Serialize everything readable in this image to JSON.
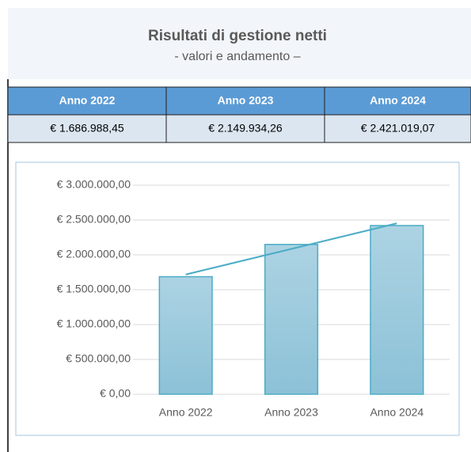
{
  "header": {
    "title": "Risultati di gestione netti",
    "subtitle": "- valori e andamento –"
  },
  "chart_data": {
    "type": "bar",
    "categories": [
      "Anno 2022",
      "Anno 2023",
      "Anno 2024"
    ],
    "values": [
      1686988.45,
      2149934.26,
      2421019.07
    ],
    "value_labels": [
      "€ 1.686.988,45",
      "€ 2.149.934,26",
      "€ 2.421.019,07"
    ],
    "color": "#9fcade",
    "edge_color": "#4bacc6",
    "trendline": "linear",
    "trendline_color": "#4bacc6",
    "ylim": [
      0,
      3000000
    ],
    "yticks": [
      {
        "value": 0,
        "label": "€ 0,00"
      },
      {
        "value": 500000,
        "label": "€ 500.000,00"
      },
      {
        "value": 1000000,
        "label": "€ 1.000.000,00"
      },
      {
        "value": 1500000,
        "label": "€ 1.500.000,00"
      },
      {
        "value": 2000000,
        "label": "€ 2.000.000,00"
      },
      {
        "value": 2500000,
        "label": "€ 2.500.000,00"
      },
      {
        "value": 3000000,
        "label": "€ 3.000.000,00"
      }
    ],
    "grid": true
  }
}
